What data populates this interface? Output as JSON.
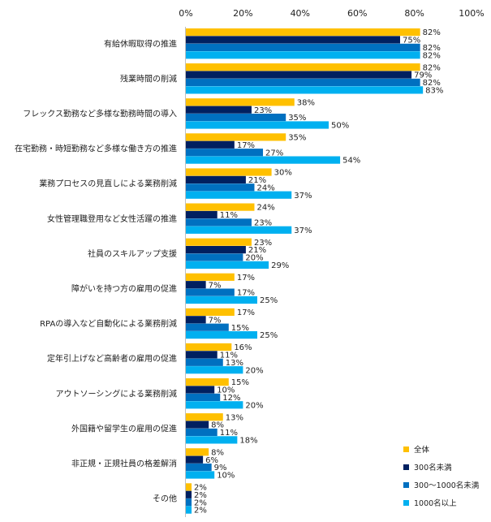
{
  "chart_data": {
    "type": "bar",
    "orientation": "horizontal",
    "title": "",
    "xlabel": "",
    "ylabel": "",
    "xlim": [
      0,
      100
    ],
    "x_ticks": [
      "0%",
      "20%",
      "40%",
      "60%",
      "80%",
      "100%"
    ],
    "value_suffix": "%",
    "grid": false,
    "legend_position": "bottom-right",
    "categories": [
      "有給休暇取得の推進",
      "残業時間の削減",
      "フレックス勤務など多様な勤務時間の導入",
      "在宅勤務・時短勤務など多様な働き方の推進",
      "業務プロセスの見直しによる業務削減",
      "女性管理職登用など女性活躍の推進",
      "社員のスキルアップ支援",
      "障がいを持つ方の雇用の促進",
      "RPAの導入など自動化による業務削減",
      "定年引上げなど高齢者の雇用の促進",
      "アウトソーシングによる業務削減",
      "外国籍や留学生の雇用の促進",
      "非正規・正規社員の格差解消",
      "その他"
    ],
    "series": [
      {
        "name": "全体",
        "color": "#FFC000",
        "values": [
          82,
          82,
          38,
          35,
          30,
          24,
          23,
          17,
          17,
          16,
          15,
          13,
          8,
          2
        ]
      },
      {
        "name": "300名未満",
        "color": "#002060",
        "values": [
          75,
          79,
          23,
          17,
          21,
          11,
          21,
          7,
          7,
          11,
          10,
          8,
          6,
          2
        ]
      },
      {
        "name": "300～1000名未満",
        "color": "#0070C0",
        "values": [
          82,
          82,
          35,
          27,
          24,
          23,
          20,
          17,
          15,
          13,
          12,
          11,
          9,
          2
        ]
      },
      {
        "name": "1000名以上",
        "color": "#00B0F0",
        "values": [
          82,
          83,
          50,
          54,
          37,
          37,
          29,
          25,
          25,
          20,
          20,
          18,
          10,
          2
        ]
      }
    ]
  }
}
